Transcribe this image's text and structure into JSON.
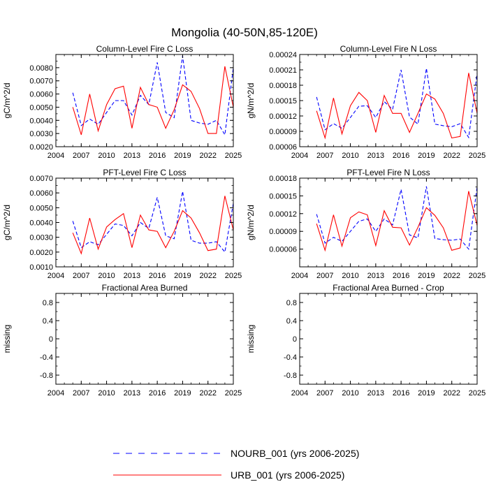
{
  "figure": {
    "title": "Mongolia (40-50N,85-120E)"
  },
  "legend": {
    "entries": [
      {
        "label": "NOURB_001 (yrs 2006-2025)",
        "color": "#0000ff",
        "style": "dashed"
      },
      {
        "label": "URB_001 (yrs 2006-2025)",
        "color": "#ff0000",
        "style": "solid"
      }
    ]
  },
  "chart_data": [
    {
      "type": "line",
      "title": "Column-Level Fire C Loss",
      "ylabel": "gC/m^2/d",
      "xlim": [
        2004,
        2025
      ],
      "ylim": [
        0.002,
        0.009
      ],
      "xticks": [
        "2004",
        "2007",
        "2010",
        "2013",
        "2016",
        "2019",
        "2022",
        "2025"
      ],
      "yticks": [
        "0.0020",
        "0.0030",
        "0.0040",
        "0.0050",
        "0.0060",
        "0.0070",
        "0.0080"
      ],
      "x": [
        2006,
        2007,
        2008,
        2009,
        2010,
        2011,
        2012,
        2013,
        2014,
        2015,
        2016,
        2017,
        2018,
        2019,
        2020,
        2021,
        2022,
        2023,
        2024,
        2025
      ],
      "series": [
        {
          "name": "NOURB_001",
          "color": "#0000ff",
          "dash": true,
          "values": [
            0.0061,
            0.0036,
            0.0041,
            0.0037,
            0.0046,
            0.0055,
            0.0055,
            0.0044,
            0.0059,
            0.0052,
            0.0084,
            0.0046,
            0.0042,
            0.0089,
            0.004,
            0.0038,
            0.0037,
            0.004,
            0.0029,
            0.008
          ]
        },
        {
          "name": "URB_001",
          "color": "#ff0000",
          "dash": false,
          "values": [
            0.005,
            0.0029,
            0.006,
            0.0032,
            0.0052,
            0.0064,
            0.0066,
            0.0034,
            0.0065,
            0.0052,
            0.005,
            0.0034,
            0.0048,
            0.0067,
            0.0062,
            0.0049,
            0.003,
            0.003,
            0.0081,
            0.005
          ]
        }
      ]
    },
    {
      "type": "line",
      "title": "Column-Level Fire N Loss",
      "ylabel": "gN/m^2/d",
      "xlim": [
        2004,
        2025
      ],
      "ylim": [
        6e-05,
        0.00024
      ],
      "xticks": [
        "2004",
        "2007",
        "2010",
        "2013",
        "2016",
        "2019",
        "2022",
        "2025"
      ],
      "yticks": [
        "0.00006",
        "0.00009",
        "0.00012",
        "0.00015",
        "0.00018",
        "0.00021",
        "0.00024"
      ],
      "x": [
        2006,
        2007,
        2008,
        2009,
        2010,
        2011,
        2012,
        2013,
        2014,
        2015,
        2016,
        2017,
        2018,
        2019,
        2020,
        2021,
        2022,
        2023,
        2024,
        2025
      ],
      "series": [
        {
          "name": "NOURB_001",
          "color": "#0000ff",
          "dash": true,
          "values": [
            0.000157,
            9.3e-05,
            0.000105,
            9.6e-05,
            0.000117,
            0.000139,
            0.00014,
            0.000117,
            0.000148,
            0.000133,
            0.00021,
            0.000118,
            0.000104,
            0.000213,
            0.000104,
            0.000101,
            9.9e-05,
            0.000105,
            7.8e-05,
            0.000203
          ]
        },
        {
          "name": "URB_001",
          "color": "#ff0000",
          "dash": false,
          "values": [
            0.00013,
            7.7e-05,
            0.000155,
            8.5e-05,
            0.00014,
            0.000166,
            0.00015,
            8.8e-05,
            0.00016,
            0.000125,
            0.000125,
            8.8e-05,
            0.000125,
            0.000163,
            0.000153,
            0.000125,
            7.7e-05,
            8e-05,
            0.000204,
            0.000125
          ]
        }
      ]
    },
    {
      "type": "line",
      "title": "PFT-Level Fire C Loss",
      "ylabel": "gC/m^2/d",
      "xlim": [
        2004,
        2025
      ],
      "ylim": [
        0.001,
        0.007
      ],
      "xticks": [
        "2004",
        "2007",
        "2010",
        "2013",
        "2016",
        "2019",
        "2022",
        "2025"
      ],
      "yticks": [
        "0.0010",
        "0.0020",
        "0.0030",
        "0.0040",
        "0.0050",
        "0.0060",
        "0.0070"
      ],
      "x": [
        2006,
        2007,
        2008,
        2009,
        2010,
        2011,
        2012,
        2013,
        2014,
        2015,
        2016,
        2017,
        2018,
        2019,
        2020,
        2021,
        2022,
        2023,
        2024,
        2025
      ],
      "series": [
        {
          "name": "NOURB_001",
          "color": "#0000ff",
          "dash": true,
          "values": [
            0.0041,
            0.0023,
            0.0027,
            0.0025,
            0.0032,
            0.0039,
            0.0038,
            0.0031,
            0.004,
            0.0036,
            0.0057,
            0.0031,
            0.0029,
            0.0061,
            0.0028,
            0.0026,
            0.0026,
            0.0027,
            0.002,
            0.0053
          ]
        },
        {
          "name": "URB_001",
          "color": "#ff0000",
          "dash": false,
          "values": [
            0.0033,
            0.0019,
            0.0043,
            0.0022,
            0.0037,
            0.0042,
            0.0046,
            0.0023,
            0.0045,
            0.0035,
            0.0034,
            0.0023,
            0.0034,
            0.0048,
            0.0043,
            0.0033,
            0.0021,
            0.0022,
            0.0058,
            0.0035
          ]
        }
      ]
    },
    {
      "type": "line",
      "title": "PFT-Level Fire N Loss",
      "ylabel": "gN/m^2/d",
      "xlim": [
        2004,
        2025
      ],
      "ylim": [
        3e-05,
        0.00018
      ],
      "xticks": [
        "2004",
        "2007",
        "2010",
        "2013",
        "2016",
        "2019",
        "2022",
        "2025"
      ],
      "yticks": [
        "0.00006",
        "0.00009",
        "0.00012",
        "0.00015",
        "0.00018"
      ],
      "x": [
        2006,
        2007,
        2008,
        2009,
        2010,
        2011,
        2012,
        2013,
        2014,
        2015,
        2016,
        2017,
        2018,
        2019,
        2020,
        2021,
        2022,
        2023,
        2024,
        2025
      ],
      "series": [
        {
          "name": "NOURB_001",
          "color": "#0000ff",
          "dash": true,
          "values": [
            0.000119,
            7e-05,
            8e-05,
            7.3e-05,
            9e-05,
            0.000107,
            0.000111,
            9e-05,
            0.000111,
            0.000101,
            0.000161,
            8.4e-05,
            7.9e-05,
            0.000166,
            7.8e-05,
            7.6e-05,
            7.5e-05,
            7.7e-05,
            6e-05,
            0.000165
          ]
        },
        {
          "name": "URB_001",
          "color": "#ff0000",
          "dash": false,
          "values": [
            0.000103,
            5.8e-05,
            0.000118,
            6.5e-05,
            0.000113,
            0.000123,
            0.000118,
            6.6e-05,
            0.000125,
            9.7e-05,
            9.6e-05,
            6.7e-05,
            9.7e-05,
            0.00013,
            0.000117,
            9.6e-05,
            5.8e-05,
            6.2e-05,
            0.000158,
            0.0001
          ]
        }
      ]
    },
    {
      "type": "line",
      "title": "Fractional Area Burned",
      "ylabel": "missing",
      "xlim": [
        2004,
        2025
      ],
      "ylim": [
        -1.0,
        1.0
      ],
      "xticks": [
        "2004",
        "2007",
        "2010",
        "2013",
        "2016",
        "2019",
        "2022",
        "2025"
      ],
      "yticks": [
        "-0.8",
        "-0.4",
        "0",
        "0.4",
        "0.8"
      ],
      "x": [],
      "series": []
    },
    {
      "type": "line",
      "title": "Fractional Area Burned - Crop",
      "ylabel": "missing",
      "xlim": [
        2004,
        2025
      ],
      "ylim": [
        -1.0,
        1.0
      ],
      "xticks": [
        "2004",
        "2007",
        "2010",
        "2013",
        "2016",
        "2019",
        "2022",
        "2025"
      ],
      "yticks": [
        "-0.8",
        "-0.4",
        "0",
        "0.4",
        "0.8"
      ],
      "x": [],
      "series": []
    }
  ]
}
